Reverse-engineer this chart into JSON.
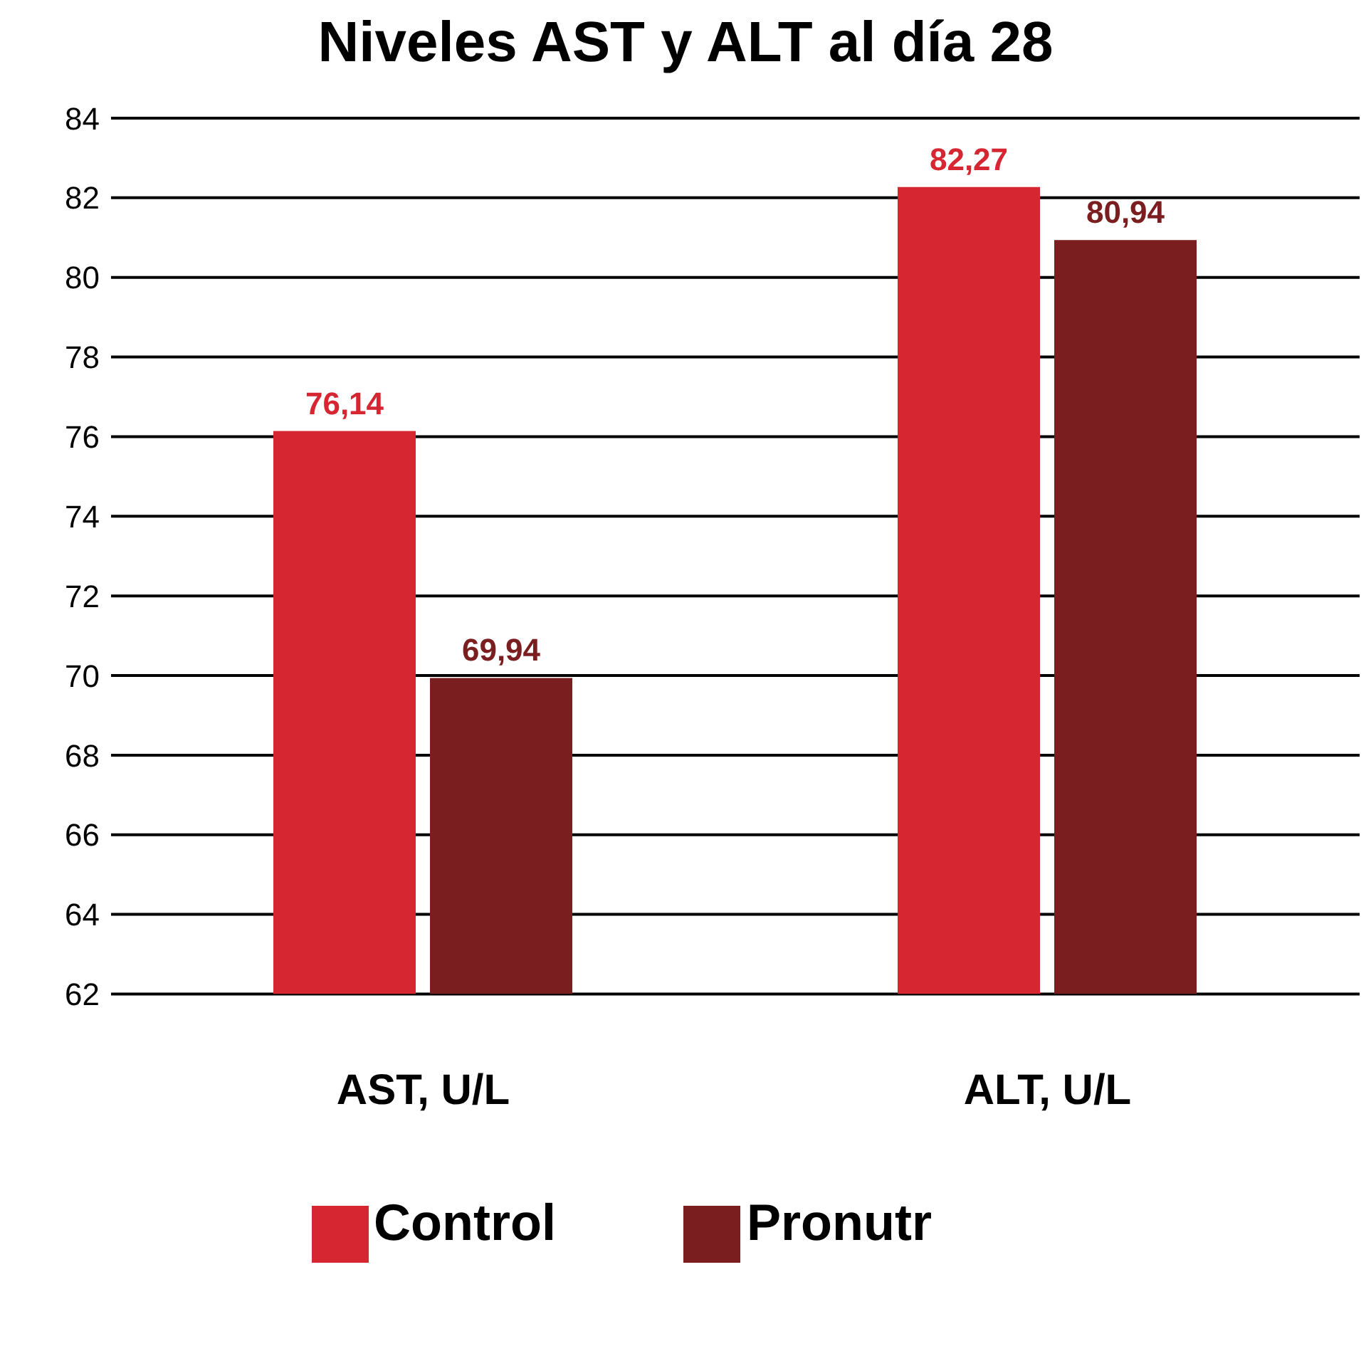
{
  "chart_data": {
    "type": "bar",
    "title": "Niveles AST y ALT al día 28",
    "categories": [
      "AST, U/L",
      "ALT, U/L"
    ],
    "series": [
      {
        "name": "Control",
        "color": "#d62631",
        "values": [
          76.14,
          82.27
        ],
        "value_labels": [
          "76,14",
          "82,27"
        ]
      },
      {
        "name": "Pronutr",
        "color": "#7b1e20",
        "values": [
          69.94,
          80.94
        ],
        "value_labels": [
          "69,94",
          "80,94"
        ]
      }
    ],
    "ylim": [
      62,
      84
    ],
    "yticks": [
      62,
      64,
      66,
      68,
      70,
      72,
      74,
      76,
      78,
      80,
      82,
      84
    ],
    "grid": "y",
    "legend": "bottom"
  }
}
